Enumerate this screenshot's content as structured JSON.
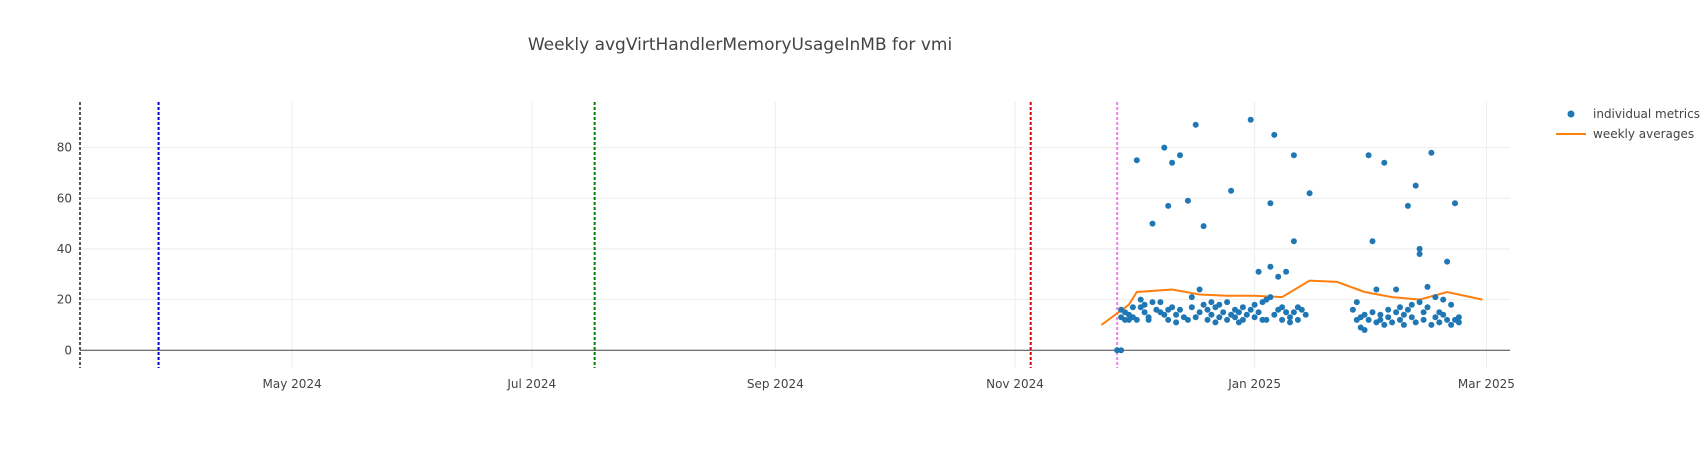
{
  "chart_data": {
    "type": "scatter",
    "title": "Weekly avgVirtHandlerMemoryUsageInMB for vmi",
    "xlabel": "",
    "ylabel": "",
    "xlim": [
      "2024-03-08",
      "2025-03-07"
    ],
    "ylim": [
      -7,
      98
    ],
    "grid": true,
    "legend_position": "top-right",
    "x_ticks": [
      {
        "date": "2024-05-01",
        "label": "May 2024"
      },
      {
        "date": "2024-07-01",
        "label": "Jul 2024"
      },
      {
        "date": "2024-09-01",
        "label": "Sep 2024"
      },
      {
        "date": "2024-11-01",
        "label": "Nov 2024"
      },
      {
        "date": "2025-01-01",
        "label": "Jan 2025"
      },
      {
        "date": "2025-03-01",
        "label": "Mar 2025"
      }
    ],
    "y_ticks": [
      0,
      20,
      40,
      60,
      80
    ],
    "vlines": [
      {
        "date": "2024-03-08",
        "color": "#555555"
      },
      {
        "date": "2024-03-28",
        "color": "#0000cc"
      },
      {
        "date": "2024-07-17",
        "color": "#008000"
      },
      {
        "date": "2024-11-05",
        "color": "#dd0000"
      },
      {
        "date": "2024-11-27",
        "color": "#ee82ee"
      }
    ],
    "series": [
      {
        "name": "individual metrics",
        "mode": "markers",
        "color": "#1f77b4",
        "points": [
          [
            "2024-11-27",
            0
          ],
          [
            "2024-11-28",
            0
          ],
          [
            "2024-11-28",
            16
          ],
          [
            "2024-11-28",
            13
          ],
          [
            "2024-11-29",
            15
          ],
          [
            "2024-11-29",
            12
          ],
          [
            "2024-11-30",
            14
          ],
          [
            "2024-11-30",
            12
          ],
          [
            "2024-12-01",
            13
          ],
          [
            "2024-12-01",
            17
          ],
          [
            "2024-12-02",
            12
          ],
          [
            "2024-12-02",
            75
          ],
          [
            "2024-12-03",
            20
          ],
          [
            "2024-12-03",
            17
          ],
          [
            "2024-12-04",
            15
          ],
          [
            "2024-12-04",
            18
          ],
          [
            "2024-12-05",
            13
          ],
          [
            "2024-12-05",
            12
          ],
          [
            "2024-12-06",
            50
          ],
          [
            "2024-12-06",
            19
          ],
          [
            "2024-12-07",
            16
          ],
          [
            "2024-12-08",
            15
          ],
          [
            "2024-12-08",
            19
          ],
          [
            "2024-12-09",
            80
          ],
          [
            "2024-12-09",
            14
          ],
          [
            "2024-12-10",
            57
          ],
          [
            "2024-12-10",
            16
          ],
          [
            "2024-12-10",
            12
          ],
          [
            "2024-12-11",
            74
          ],
          [
            "2024-12-11",
            17
          ],
          [
            "2024-12-12",
            14
          ],
          [
            "2024-12-12",
            11
          ],
          [
            "2024-12-13",
            77
          ],
          [
            "2024-12-13",
            16
          ],
          [
            "2024-12-14",
            13
          ],
          [
            "2024-12-15",
            12
          ],
          [
            "2024-12-15",
            59
          ],
          [
            "2024-12-16",
            17
          ],
          [
            "2024-12-16",
            21
          ],
          [
            "2024-12-17",
            13
          ],
          [
            "2024-12-17",
            89
          ],
          [
            "2024-12-18",
            24
          ],
          [
            "2024-12-18",
            15
          ],
          [
            "2024-12-19",
            49
          ],
          [
            "2024-12-19",
            18
          ],
          [
            "2024-12-20",
            16
          ],
          [
            "2024-12-20",
            12
          ],
          [
            "2024-12-21",
            19
          ],
          [
            "2024-12-21",
            14
          ],
          [
            "2024-12-22",
            11
          ],
          [
            "2024-12-22",
            17
          ],
          [
            "2024-12-23",
            13
          ],
          [
            "2024-12-23",
            18
          ],
          [
            "2024-12-24",
            15
          ],
          [
            "2024-12-25",
            12
          ],
          [
            "2024-12-25",
            19
          ],
          [
            "2024-12-26",
            14
          ],
          [
            "2024-12-26",
            63
          ],
          [
            "2024-12-27",
            16
          ],
          [
            "2024-12-27",
            13
          ],
          [
            "2024-12-28",
            11
          ],
          [
            "2024-12-28",
            15
          ],
          [
            "2024-12-29",
            17
          ],
          [
            "2024-12-29",
            12
          ],
          [
            "2024-12-30",
            14
          ],
          [
            "2024-12-31",
            16
          ],
          [
            "2024-12-31",
            91
          ],
          [
            "2025-01-01",
            13
          ],
          [
            "2025-01-01",
            18
          ],
          [
            "2025-01-02",
            31
          ],
          [
            "2025-01-02",
            15
          ],
          [
            "2025-01-03",
            12
          ],
          [
            "2025-01-03",
            19
          ],
          [
            "2025-01-04",
            20
          ],
          [
            "2025-01-04",
            12
          ],
          [
            "2025-01-05",
            58
          ],
          [
            "2025-01-05",
            33
          ],
          [
            "2025-01-05",
            21
          ],
          [
            "2025-01-06",
            85
          ],
          [
            "2025-01-06",
            14
          ],
          [
            "2025-01-07",
            29
          ],
          [
            "2025-01-07",
            16
          ],
          [
            "2025-01-08",
            12
          ],
          [
            "2025-01-08",
            17
          ],
          [
            "2025-01-09",
            15
          ],
          [
            "2025-01-09",
            31
          ],
          [
            "2025-01-10",
            13
          ],
          [
            "2025-01-10",
            11
          ],
          [
            "2025-01-11",
            77
          ],
          [
            "2025-01-11",
            43
          ],
          [
            "2025-01-11",
            15
          ],
          [
            "2025-01-12",
            12
          ],
          [
            "2025-01-12",
            17
          ],
          [
            "2025-01-13",
            16
          ],
          [
            "2025-01-14",
            14
          ],
          [
            "2025-01-15",
            62
          ],
          [
            "2025-01-26",
            16
          ],
          [
            "2025-01-27",
            12
          ],
          [
            "2025-01-27",
            19
          ],
          [
            "2025-01-28",
            13
          ],
          [
            "2025-01-28",
            9
          ],
          [
            "2025-01-29",
            14
          ],
          [
            "2025-01-29",
            8
          ],
          [
            "2025-01-30",
            77
          ],
          [
            "2025-01-30",
            12
          ],
          [
            "2025-01-31",
            43
          ],
          [
            "2025-01-31",
            15
          ],
          [
            "2025-02-01",
            11
          ],
          [
            "2025-02-01",
            24
          ],
          [
            "2025-02-02",
            14
          ],
          [
            "2025-02-02",
            12
          ],
          [
            "2025-02-03",
            74
          ],
          [
            "2025-02-03",
            10
          ],
          [
            "2025-02-04",
            16
          ],
          [
            "2025-02-04",
            13
          ],
          [
            "2025-02-05",
            11
          ],
          [
            "2025-02-06",
            15
          ],
          [
            "2025-02-06",
            24
          ],
          [
            "2025-02-07",
            12
          ],
          [
            "2025-02-07",
            17
          ],
          [
            "2025-02-08",
            14
          ],
          [
            "2025-02-08",
            10
          ],
          [
            "2025-02-09",
            57
          ],
          [
            "2025-02-09",
            16
          ],
          [
            "2025-02-10",
            13
          ],
          [
            "2025-02-10",
            18
          ],
          [
            "2025-02-11",
            11
          ],
          [
            "2025-02-11",
            65
          ],
          [
            "2025-02-12",
            40
          ],
          [
            "2025-02-12",
            38
          ],
          [
            "2025-02-12",
            19
          ],
          [
            "2025-02-13",
            15
          ],
          [
            "2025-02-13",
            12
          ],
          [
            "2025-02-14",
            25
          ],
          [
            "2025-02-14",
            17
          ],
          [
            "2025-02-15",
            10
          ],
          [
            "2025-02-15",
            78
          ],
          [
            "2025-02-16",
            13
          ],
          [
            "2025-02-16",
            21
          ],
          [
            "2025-02-17",
            15
          ],
          [
            "2025-02-17",
            11
          ],
          [
            "2025-02-18",
            20
          ],
          [
            "2025-02-18",
            14
          ],
          [
            "2025-02-19",
            35
          ],
          [
            "2025-02-19",
            12
          ],
          [
            "2025-02-20",
            10
          ],
          [
            "2025-02-20",
            18
          ],
          [
            "2025-02-21",
            58
          ],
          [
            "2025-02-21",
            12
          ],
          [
            "2025-02-22",
            13
          ],
          [
            "2025-02-22",
            11
          ]
        ]
      },
      {
        "name": "weekly averages",
        "mode": "lines",
        "color": "#ff7f0e",
        "points": [
          [
            "2024-11-23",
            10
          ],
          [
            "2024-11-30",
            18
          ],
          [
            "2024-12-02",
            23
          ],
          [
            "2024-12-11",
            24
          ],
          [
            "2024-12-18",
            22
          ],
          [
            "2024-12-25",
            21.5
          ],
          [
            "2025-01-01",
            21.5
          ],
          [
            "2025-01-08",
            21
          ],
          [
            "2025-01-15",
            27.5
          ],
          [
            "2025-01-22",
            27
          ],
          [
            "2025-01-29",
            23
          ],
          [
            "2025-02-05",
            21
          ],
          [
            "2025-02-12",
            20
          ],
          [
            "2025-02-19",
            23
          ],
          [
            "2025-02-28",
            20
          ]
        ]
      }
    ]
  }
}
